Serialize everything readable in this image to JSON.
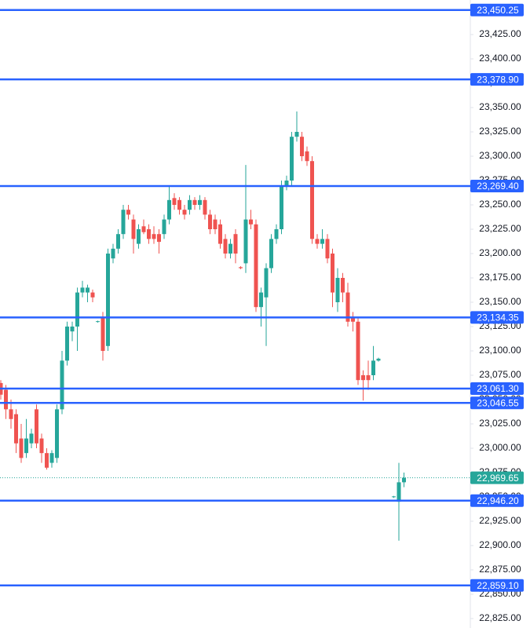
{
  "chart_data": {
    "type": "candlestick",
    "x": [
      0,
      1,
      2,
      3,
      4,
      5,
      6,
      7,
      8,
      9,
      10,
      11,
      12,
      13,
      14,
      15,
      16,
      17,
      18,
      19,
      20,
      21,
      22,
      23,
      24,
      25,
      26,
      27,
      28,
      29,
      30,
      31,
      32,
      33,
      34,
      35,
      36,
      37,
      38,
      39,
      40,
      41,
      42,
      43,
      44,
      45,
      46,
      47,
      48,
      49,
      50,
      51,
      52,
      53,
      54,
      55,
      56,
      57,
      58,
      59,
      60,
      61,
      62,
      63,
      64,
      65,
      66,
      67,
      68,
      69,
      70,
      71,
      72,
      73,
      74,
      77,
      78,
      79
    ],
    "open": [
      23067,
      23060,
      23040,
      23035,
      23010,
      22995,
      23005,
      23040,
      23010,
      22995,
      22985,
      22990,
      23040,
      23090,
      23120,
      23125,
      23160,
      23160,
      23160,
      23130,
      23135,
      23105,
      23195,
      23205,
      23220,
      23245,
      23235,
      23210,
      23228,
      23225,
      23220,
      23220,
      23220,
      23235,
      23257,
      23255,
      23245,
      23245,
      23255,
      23250,
      23255,
      23240,
      23235,
      23230,
      23215,
      23200,
      23220,
      23186,
      23190,
      23235,
      23230,
      23145,
      23155,
      23185,
      23215,
      23225,
      23270,
      23275,
      23320,
      23320,
      23305,
      23295,
      23215,
      23210,
      23215,
      23200,
      23150,
      23175,
      23160,
      23135,
      23130,
      23075,
      23075,
      23075,
      23090,
      22950,
      22945,
      22965
    ],
    "high": [
      23070,
      23065,
      23050,
      23040,
      23025,
      23030,
      23020,
      23045,
      23015,
      23000,
      22998,
      23045,
      23100,
      23130,
      23130,
      23165,
      23172,
      23168,
      23163,
      23131,
      23140,
      23205,
      23210,
      23225,
      23250,
      23250,
      23240,
      23230,
      23235,
      23230,
      23228,
      23225,
      23240,
      23270,
      23262,
      23258,
      23250,
      23260,
      23258,
      23260,
      23258,
      23245,
      23240,
      23235,
      23220,
      23215,
      23225,
      23187,
      23291,
      23245,
      23235,
      23165,
      23190,
      23220,
      23230,
      23275,
      23280,
      23325,
      23346,
      23325,
      23310,
      23300,
      23220,
      23225,
      23220,
      23205,
      23185,
      23180,
      23170,
      23140,
      23135,
      23080,
      23090,
      23105,
      23093,
      22951,
      22985,
      22975
    ],
    "low": [
      23050,
      23030,
      23020,
      22995,
      22985,
      22990,
      23000,
      23000,
      22985,
      22978,
      22980,
      22985,
      23035,
      23085,
      23110,
      23100,
      23155,
      23150,
      23150,
      23129,
      23090,
      23100,
      23190,
      23200,
      23215,
      23235,
      23200,
      23205,
      23220,
      23210,
      23210,
      23200,
      23215,
      23230,
      23245,
      23240,
      23235,
      23240,
      23245,
      23245,
      23235,
      23220,
      23220,
      23205,
      23195,
      23195,
      23190,
      23184,
      23180,
      23225,
      23140,
      23125,
      23105,
      23180,
      23210,
      23220,
      23265,
      23270,
      23315,
      23295,
      23290,
      23210,
      23205,
      23205,
      23190,
      23145,
      23140,
      23150,
      23125,
      23120,
      23065,
      23049,
      23060,
      23070,
      23089,
      22949,
      22905,
      22960
    ],
    "close": [
      23055,
      23040,
      23030,
      23005,
      22990,
      23010,
      23015,
      23005,
      22995,
      22980,
      22995,
      23040,
      23090,
      23125,
      23125,
      23160,
      23165,
      23165,
      23155,
      23130.5,
      23100,
      23200,
      23205,
      23220,
      23245,
      23240,
      23215,
      23225,
      23222,
      23215,
      23215,
      23212,
      23235,
      23255,
      23250,
      23245,
      23240,
      23255,
      23250,
      23255,
      23240,
      23225,
      23225,
      23210,
      23200,
      23210,
      23200,
      23185,
      23235,
      23230,
      23145,
      23160,
      23185,
      23215,
      23225,
      23270,
      23275,
      23320,
      23325,
      23300,
      23295,
      23215,
      23210,
      23215,
      23195,
      23160,
      23175,
      23160,
      23130,
      23130,
      23070,
      23070,
      23070,
      23090,
      23092,
      22950.5,
      22965,
      22969.65
    ],
    "up_color": "#26a69a",
    "down_color": "#ef5350",
    "xlim": [
      0,
      92
    ],
    "ylim": [
      22815.3,
      23460.5
    ],
    "yticks": [
      {
        "value": 22825,
        "label": "22,825.00"
      },
      {
        "value": 22850,
        "label": "22,850.00"
      },
      {
        "value": 22875,
        "label": "22,875.00"
      },
      {
        "value": 22900,
        "label": "22,900.00"
      },
      {
        "value": 22925,
        "label": "22,925.00"
      },
      {
        "value": 22950,
        "label": "22,950.00"
      },
      {
        "value": 22975,
        "label": "22,975.00"
      },
      {
        "value": 23000,
        "label": "23,000.00"
      },
      {
        "value": 23025,
        "label": "23,025.00"
      },
      {
        "value": 23050,
        "label": "23,050.00"
      },
      {
        "value": 23075,
        "label": "23,075.00"
      },
      {
        "value": 23100,
        "label": "23,100.00"
      },
      {
        "value": 23125,
        "label": "23,125.00"
      },
      {
        "value": 23150,
        "label": "23,150.00"
      },
      {
        "value": 23175,
        "label": "23,175.00"
      },
      {
        "value": 23200,
        "label": "23,200.00"
      },
      {
        "value": 23225,
        "label": "23,225.00"
      },
      {
        "value": 23250,
        "label": "23,250.00"
      },
      {
        "value": 23275,
        "label": "23,275.00"
      },
      {
        "value": 23300,
        "label": "23,300.00"
      },
      {
        "value": 23325,
        "label": "23,325.00"
      },
      {
        "value": 23350,
        "label": "23,350.00"
      },
      {
        "value": 23375,
        "label": "23,375.00"
      },
      {
        "value": 23400,
        "label": "23,400.00"
      },
      {
        "value": 23425,
        "label": "23,425.00"
      }
    ],
    "levels": [
      {
        "value": 23450.25,
        "label": "23,450.25"
      },
      {
        "value": 23378.9,
        "label": "23,378.90"
      },
      {
        "value": 23269.4,
        "label": "23,269.40"
      },
      {
        "value": 23134.35,
        "label": "23,134.35"
      },
      {
        "value": 23061.3,
        "label": "23,061.30"
      },
      {
        "value": 23046.55,
        "label": "23,046.55"
      },
      {
        "value": 22946.2,
        "label": "22,946.20"
      },
      {
        "value": 22859.1,
        "label": "22,859.10"
      }
    ],
    "level_color": "#2962ff",
    "last_price": {
      "value": 22969.65,
      "label": "22,969.65"
    },
    "last_color": "#26a69a"
  }
}
